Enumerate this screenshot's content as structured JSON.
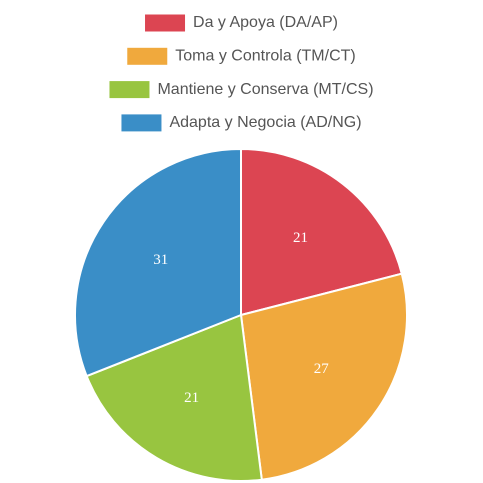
{
  "chart_data": {
    "type": "pie",
    "categories": [
      "Da y Apoya (DA/AP)",
      "Toma y Controla (TM/CT)",
      "Mantiene y Conserva (MT/CS)",
      "Adapta y Negocia (AD/NG)"
    ],
    "values": [
      21,
      27,
      21,
      31
    ],
    "colors": [
      "#dc4552",
      "#f0a93d",
      "#98c540",
      "#3a8ec7"
    ],
    "legend": "top"
  }
}
